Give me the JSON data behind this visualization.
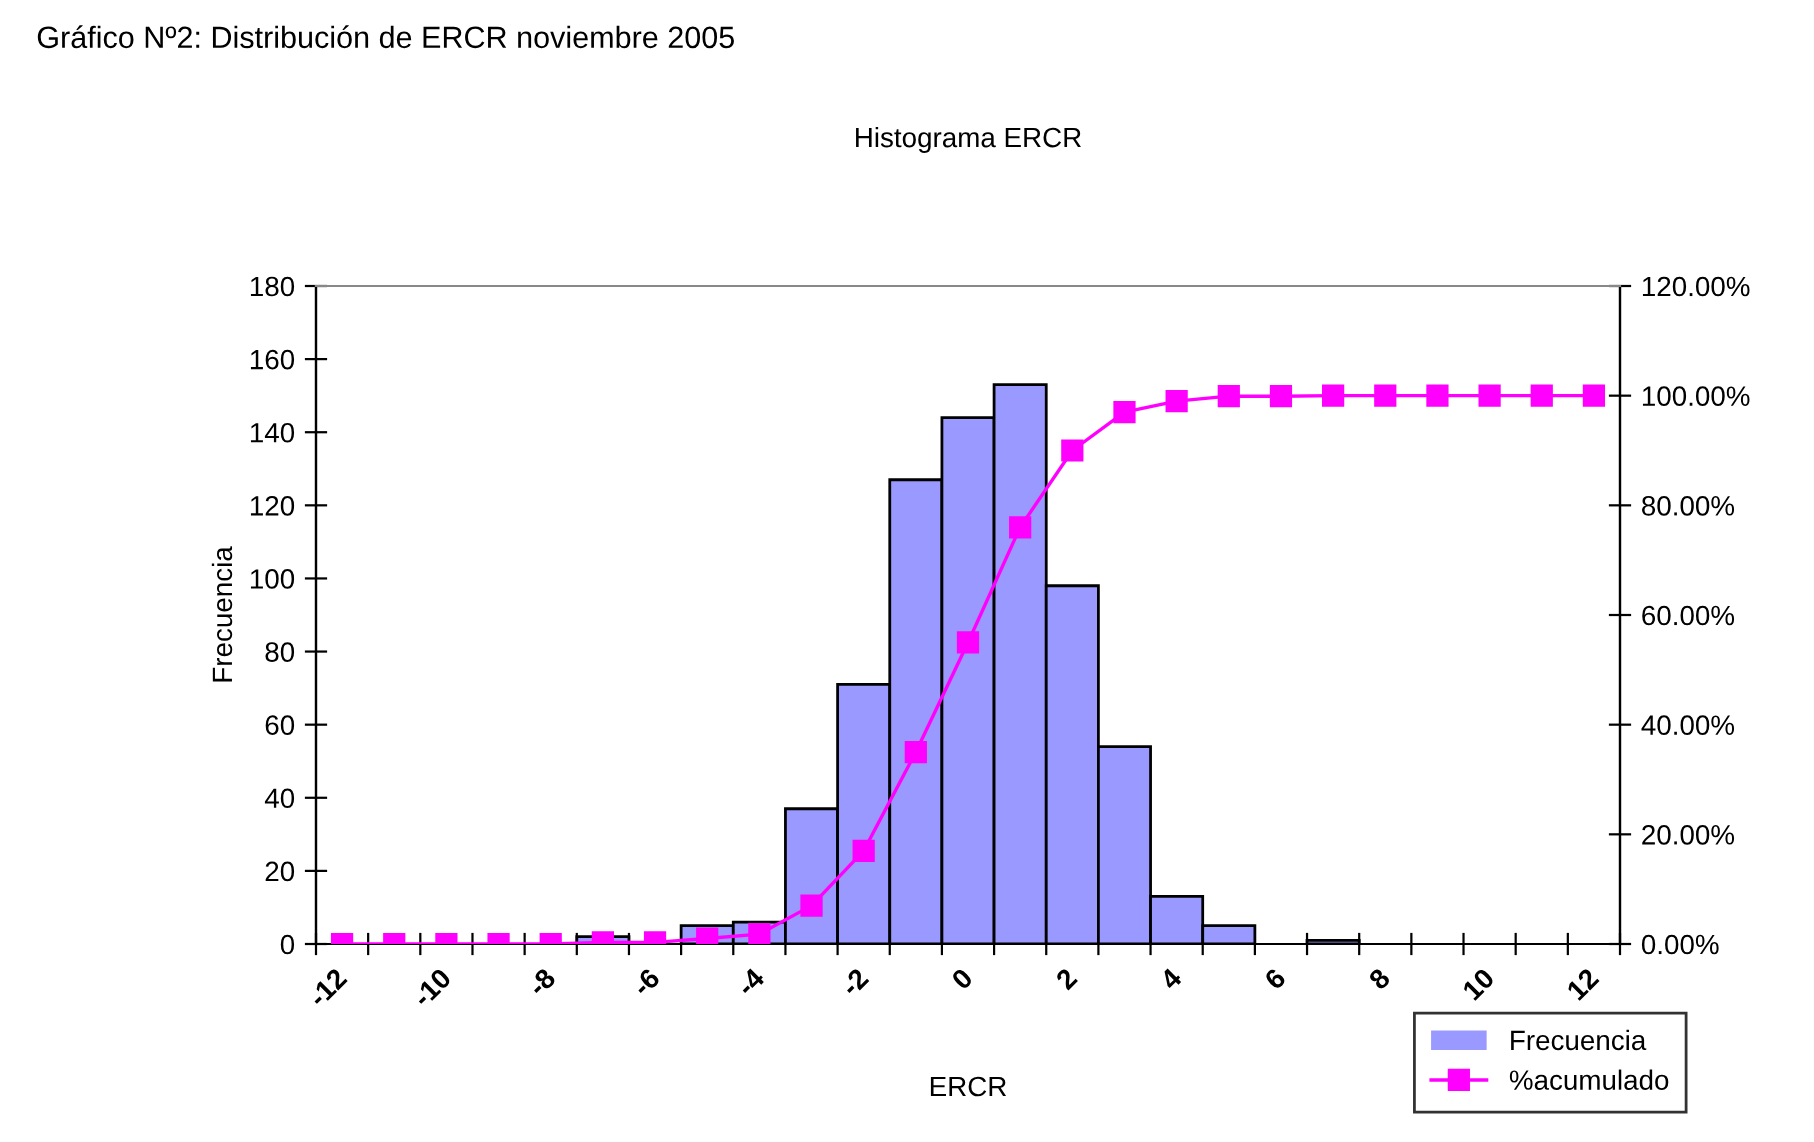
{
  "chart_data": {
    "type": "bar",
    "title": "Gráfico Nº2: Distribución de ERCR noviembre 2005",
    "subtitle": "Histograma ERCR",
    "xlabel": "ERCR",
    "ylabel": "Frecuencia",
    "categories": [
      "-12",
      null,
      "-10",
      null,
      "-8",
      null,
      "-6",
      null,
      "-4",
      null,
      "-2",
      null,
      "0",
      null,
      "2",
      null,
      "4",
      null,
      "6",
      null,
      "8",
      null,
      "10",
      null,
      "12"
    ],
    "series": [
      {
        "name": "Frecuencia",
        "color": "#9999ff",
        "values": [
          0,
          0,
          0,
          0,
          0,
          2,
          0,
          5,
          6,
          37,
          71,
          127,
          144,
          153,
          98,
          54,
          13,
          5,
          0,
          1,
          0,
          0,
          0,
          0,
          0
        ]
      },
      {
        "name": "%acumulado",
        "type": "line",
        "axis": "y2",
        "color": "#ff00ff",
        "marker": "square",
        "values": [
          0,
          0,
          0,
          0,
          0,
          0.3,
          0.3,
          1,
          1.8,
          7,
          17,
          35,
          55,
          76,
          90,
          97,
          99,
          99.9,
          99.9,
          100,
          100,
          100,
          100,
          100,
          100
        ]
      }
    ],
    "ylim": [
      0,
      180
    ],
    "yticks": [
      0,
      20,
      40,
      60,
      80,
      100,
      120,
      140,
      160,
      180
    ],
    "y2lim": [
      0,
      120
    ],
    "y2ticks": [
      {
        "value": 0,
        "label": "0.00%"
      },
      {
        "value": 20,
        "label": "20.00%"
      },
      {
        "value": 40,
        "label": "40.00%"
      },
      {
        "value": 60,
        "label": "60.00%"
      },
      {
        "value": 80,
        "label": "80.00%"
      },
      {
        "value": 100,
        "label": "100.00%"
      },
      {
        "value": 120,
        "label": "120.00%"
      }
    ],
    "grid": false,
    "legend": "bottom right"
  }
}
